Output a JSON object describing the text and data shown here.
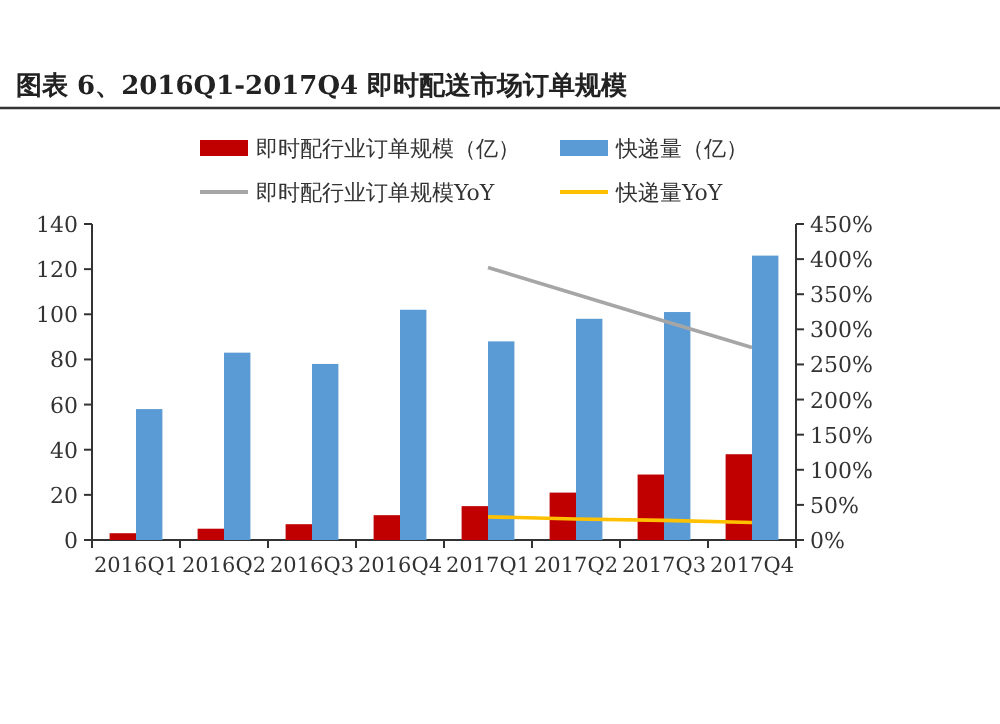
{
  "chart_data": {
    "type": "bar",
    "title": "图表 6、2016Q1-2017Q4 即时配送市场订单规模",
    "categories": [
      "2016Q1",
      "2016Q2",
      "2016Q3",
      "2016Q4",
      "2017Q1",
      "2017Q2",
      "2017Q3",
      "2017Q4"
    ],
    "series": [
      {
        "name": "即时配行业订单规模（亿）",
        "color": "#c00000",
        "values": [
          3,
          5,
          7,
          11,
          15,
          21,
          29,
          38
        ]
      },
      {
        "name": "快递量（亿）",
        "color": "#5b9bd5",
        "values": [
          58,
          83,
          78,
          102,
          88,
          98,
          101,
          126
        ]
      },
      {
        "name": "即时配行业订单规模YoY",
        "type": "line",
        "axis": "y2",
        "color": "#a6a6a6",
        "values": [
          null,
          null,
          null,
          null,
          388,
          350,
          312,
          274
        ]
      },
      {
        "name": "快递量YoY",
        "type": "line",
        "axis": "y2",
        "color": "#ffc000",
        "values": [
          null,
          null,
          null,
          null,
          33,
          30,
          28,
          25
        ]
      }
    ],
    "ylim": [
      0,
      140
    ],
    "yticks": [
      0,
      20,
      40,
      60,
      80,
      100,
      120,
      140
    ],
    "y2lim": [
      0,
      450
    ],
    "y2ticks": [
      {
        "value": 0,
        "label": "0%"
      },
      {
        "value": 50,
        "label": "50%"
      },
      {
        "value": 100,
        "label": "100%"
      },
      {
        "value": 150,
        "label": "150%"
      },
      {
        "value": 200,
        "label": "200%"
      },
      {
        "value": 250,
        "label": "250%"
      },
      {
        "value": 300,
        "label": "300%"
      },
      {
        "value": 350,
        "label": "350%"
      },
      {
        "value": 400,
        "label": "400%"
      },
      {
        "value": 450,
        "label": "450%"
      }
    ],
    "legend": "top",
    "grid": false
  }
}
